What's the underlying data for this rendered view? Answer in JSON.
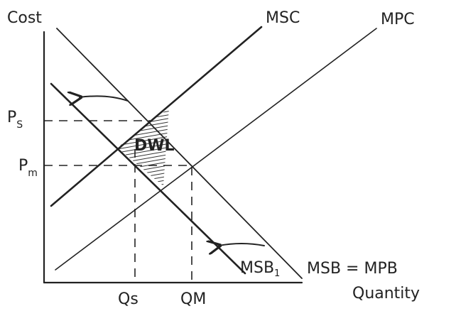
{
  "labels": {
    "y_axis": "Cost",
    "x_axis": "Quantity",
    "msc": "MSC",
    "mpc": "MPC",
    "msb_mpb": "MSB = MPB",
    "msb1": {
      "main": "MSB",
      "sub": "1"
    },
    "ps": {
      "main": "P",
      "sub": "S"
    },
    "pm": {
      "main": "P",
      "sub": "m"
    },
    "qs": "Qs",
    "qm": "QM",
    "dwl": "DWL"
  }
}
